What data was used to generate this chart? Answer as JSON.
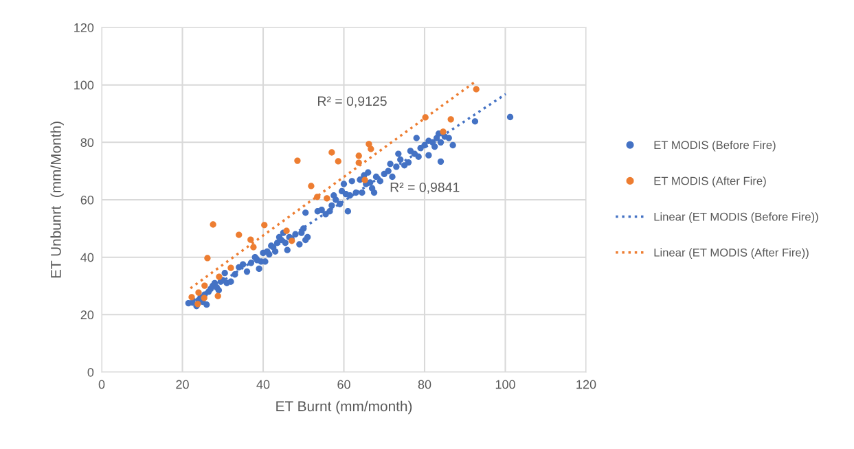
{
  "chart_data": {
    "type": "scatter",
    "xlabel": "ET Burnt (mm/month)",
    "ylabel": "ET Unbunrt  (mm/Month)",
    "xlim": [
      0,
      120
    ],
    "ylim": [
      0,
      120
    ],
    "xticks": [
      0,
      20,
      40,
      60,
      80,
      100,
      120
    ],
    "yticks": [
      0,
      20,
      40,
      60,
      80,
      100,
      120
    ],
    "grid": true,
    "legend": "right",
    "series": [
      {
        "name": "ET MODIS (Before Fire)",
        "marker": "circle",
        "color": "#4472c4",
        "x": [
          21.5,
          22.5,
          23.5,
          24,
          24.5,
          25,
          25.5,
          26,
          26.5,
          27,
          27.5,
          28,
          28.5,
          29,
          29.5,
          30,
          30.5,
          31,
          32,
          33,
          34,
          35,
          36,
          37,
          38,
          38.5,
          39,
          39.5,
          40,
          40.5,
          41,
          41.5,
          42,
          42.5,
          43,
          43.5,
          44,
          44.5,
          45,
          45.5,
          46,
          46.5,
          47,
          48,
          49,
          49.5,
          50,
          50.5,
          50.5,
          51,
          53.5,
          54.5,
          55.5,
          56.5,
          57,
          57.5,
          58,
          59,
          59.5,
          60,
          60.5,
          61,
          61.5,
          62,
          63,
          64,
          64.5,
          65,
          65.5,
          66,
          66.5,
          67,
          67.5,
          68,
          69,
          70,
          71,
          71.5,
          72,
          73,
          73.5,
          74,
          75,
          76,
          76.5,
          77.5,
          78,
          78.5,
          79,
          80,
          81,
          81,
          82,
          82.5,
          83,
          83.5,
          84,
          84,
          85,
          86,
          87,
          92.5,
          101.2
        ],
        "values": [
          24,
          24.2,
          23,
          25,
          26,
          24.5,
          27,
          23.5,
          28,
          29,
          30,
          31,
          29.5,
          28.5,
          31.5,
          32,
          34.5,
          31,
          31.5,
          34,
          36.5,
          37.5,
          35,
          38,
          40,
          39,
          36,
          38.5,
          41.5,
          38.5,
          42,
          41,
          44,
          43.5,
          42,
          45,
          47,
          46,
          48.5,
          45,
          42.5,
          47,
          46.5,
          48,
          44.5,
          48.5,
          50,
          55.5,
          46,
          47,
          56,
          56.5,
          55,
          56,
          58,
          61.5,
          60,
          58.5,
          63,
          65.5,
          62,
          56,
          61.5,
          66.5,
          62.5,
          67,
          62.5,
          68.5,
          65.5,
          69.5,
          66,
          64,
          62.5,
          68,
          66.5,
          69,
          70,
          72.5,
          68,
          71.5,
          76,
          74,
          72,
          73,
          77,
          76,
          81.5,
          75,
          78,
          79,
          75.5,
          80.5,
          80,
          78.5,
          81.5,
          83,
          73.3,
          80,
          82,
          81.5,
          79,
          87.3,
          88.8
        ]
      },
      {
        "name": "ET MODIS (After Fire)",
        "marker": "circle",
        "color": "#ed7d31",
        "x": [
          22.3,
          24.0,
          23.8,
          25.5,
          25.4,
          26.2,
          27.6,
          28.5,
          29.1,
          28.8,
          32.0,
          34.0,
          36.9,
          37.6,
          40.3,
          45.8,
          47.1,
          48.5,
          51.9,
          53.4,
          55.8,
          57.0,
          58.6,
          63.7,
          63.7,
          65.2,
          66.2,
          66.7,
          80.2,
          84.6,
          86.5,
          92.8
        ],
        "values": [
          26.1,
          27.7,
          23.7,
          30.1,
          25.8,
          39.7,
          51.4,
          null,
          33.2,
          26.5,
          36.3,
          47.8,
          46.1,
          43.5,
          51.2,
          49.2,
          45.7,
          73.6,
          64.8,
          61.0,
          60.5,
          76.5,
          73.4,
          75.3,
          72.9,
          66.9,
          79.4,
          77.7,
          88.7,
          83.7,
          88.0,
          98.5
        ]
      },
      {
        "name": "Linear (ET MODIS (Before Fire))",
        "type": "line",
        "marker": "none",
        "line_style": "dotted",
        "color": "#4472c4",
        "x": [
          21.5,
          100.1
        ],
        "values": [
          23.8,
          96.8
        ]
      },
      {
        "name": "Linear (ET MODIS (After Fire))",
        "type": "line",
        "marker": "none",
        "line_style": "dotted",
        "color": "#ed7d31",
        "x": [
          22.0,
          92.8
        ],
        "values": [
          29.2,
          101.4
        ]
      }
    ],
    "annotations": [
      "R² = 0,9125",
      "R² = 0,9841"
    ]
  }
}
